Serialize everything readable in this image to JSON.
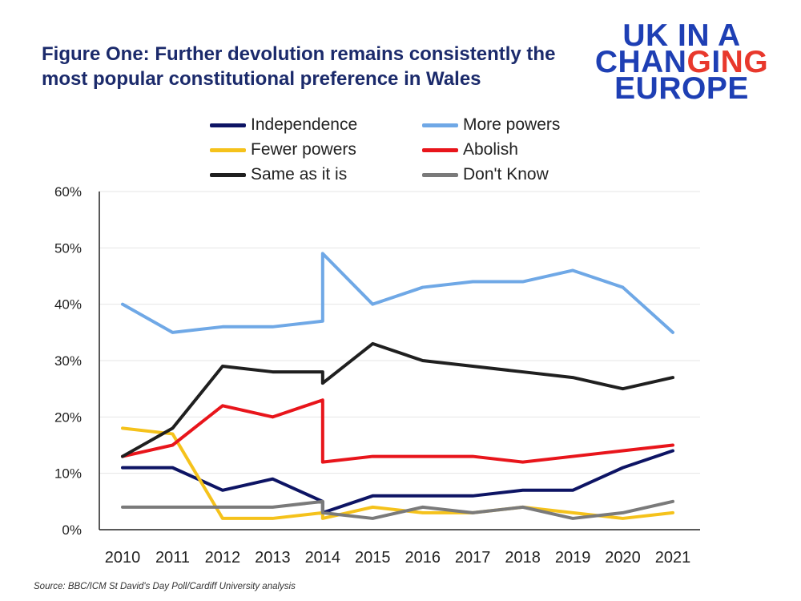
{
  "header": {
    "title": "Figure One: Further devolution remains consistently the most popular constitutional preference in Wales",
    "logo_line1": "UK IN A",
    "logo_line2_a": "CHAN",
    "logo_line2_b": "G",
    "logo_line2_c": "I",
    "logo_line2_d": "NG",
    "logo_line3": "EUROPE"
  },
  "colors": {
    "title": "#1b2a6b",
    "logo": "#1e3fb4",
    "logo_accent": "#e8382c"
  },
  "footer": {
    "source": "Source: BBC/ICM St David's Day Poll/Cardiff University analysis"
  },
  "chart_data": {
    "type": "line",
    "x": [
      "2010",
      "2011",
      "2012",
      "2013",
      "2014",
      "2014",
      "2015",
      "2016",
      "2017",
      "2018",
      "2019",
      "2020",
      "2021"
    ],
    "x_labels": [
      "2010",
      "2011",
      "2012",
      "2013",
      "2014",
      "2015",
      "2016",
      "2017",
      "2018",
      "2019",
      "2020",
      "2021"
    ],
    "y_ticks": [
      "0%",
      "10%",
      "20%",
      "30%",
      "40%",
      "50%",
      "60%"
    ],
    "ylim": [
      0,
      60
    ],
    "grid": true,
    "legend_position": "top",
    "series": [
      {
        "name": "Independence",
        "color": "#0d1464",
        "values": [
          11,
          11,
          7,
          9,
          5,
          3,
          6,
          6,
          6,
          7,
          7,
          11,
          14
        ]
      },
      {
        "name": "More powers",
        "color": "#6fa8e6",
        "values": [
          40,
          35,
          36,
          36,
          37,
          49,
          40,
          43,
          44,
          44,
          46,
          43,
          35
        ]
      },
      {
        "name": "Fewer powers",
        "color": "#f5c21b",
        "values": [
          18,
          17,
          2,
          2,
          3,
          2,
          4,
          3,
          3,
          4,
          3,
          2,
          3
        ]
      },
      {
        "name": "Abolish",
        "color": "#e8151b",
        "values": [
          13,
          15,
          22,
          20,
          23,
          12,
          13,
          13,
          13,
          12,
          13,
          14,
          15
        ]
      },
      {
        "name": "Same as it is",
        "color": "#1f1f1f",
        "values": [
          13,
          18,
          29,
          28,
          28,
          26,
          33,
          30,
          29,
          28,
          27,
          25,
          27
        ]
      },
      {
        "name": "Don't Know",
        "color": "#7a7a7a",
        "values": [
          4,
          4,
          4,
          4,
          5,
          3,
          2,
          4,
          3,
          4,
          2,
          3,
          5
        ]
      }
    ]
  }
}
